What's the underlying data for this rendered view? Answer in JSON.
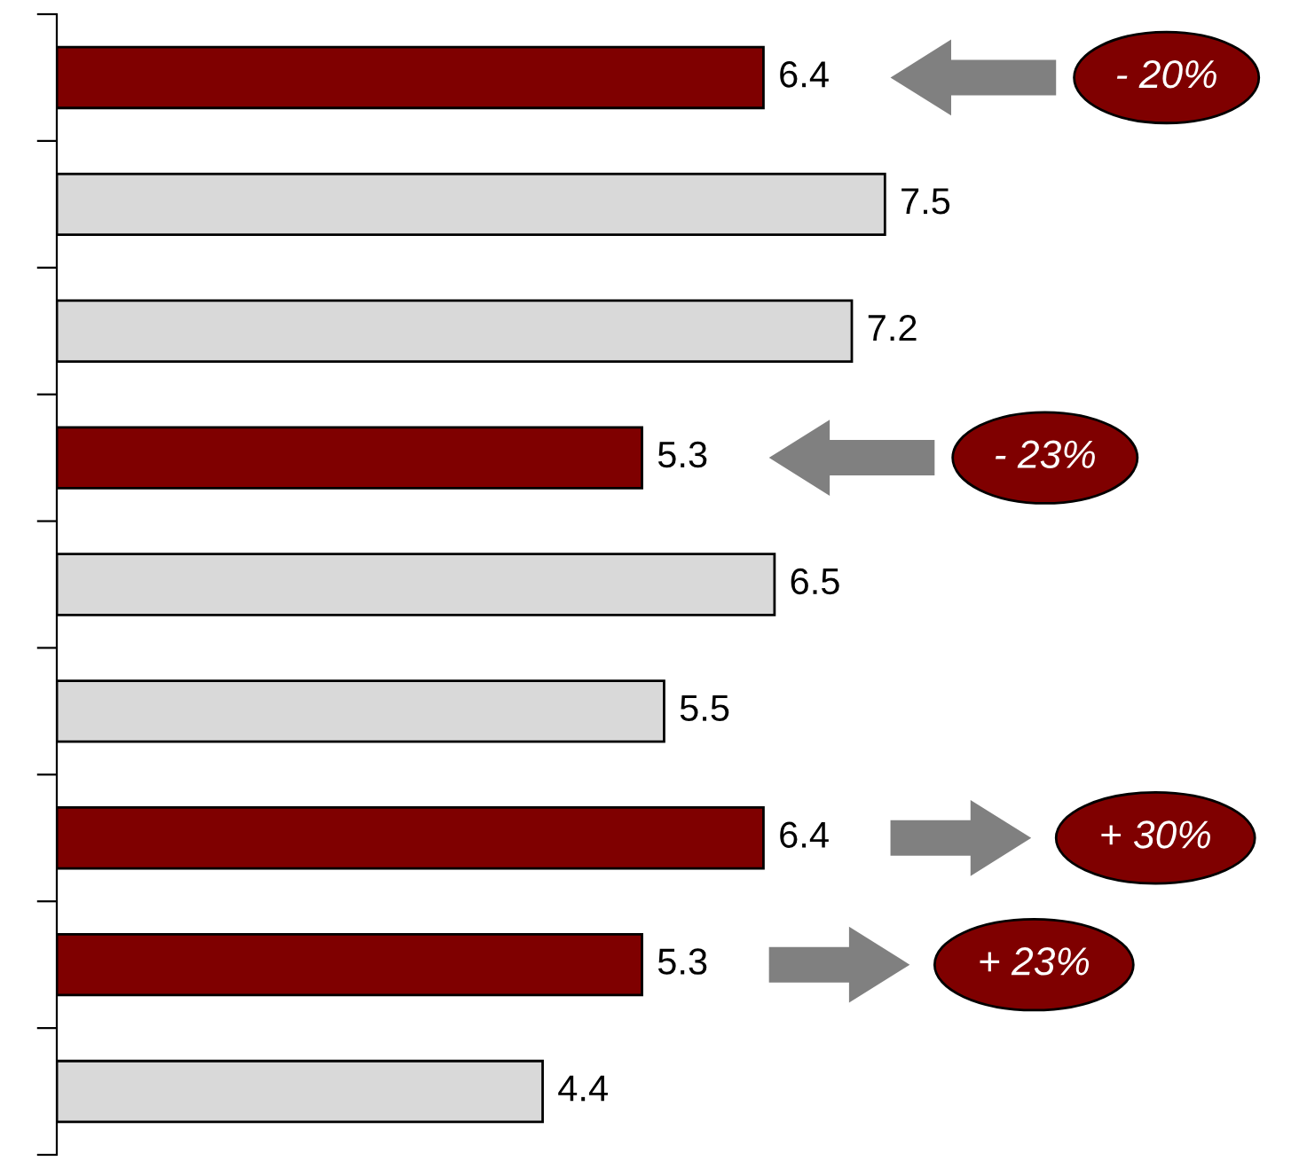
{
  "chart_data": {
    "type": "bar",
    "orientation": "horizontal",
    "categories": [
      null,
      null,
      null,
      null,
      null,
      null,
      null,
      null,
      null
    ],
    "values": [
      6.4,
      7.5,
      7.2,
      5.3,
      6.5,
      5.5,
      6.4,
      5.3,
      4.4
    ],
    "colors": [
      "#7f0000",
      "#d9d9d9",
      "#d9d9d9",
      "#7f0000",
      "#d9d9d9",
      "#d9d9d9",
      "#7f0000",
      "#7f0000",
      "#d9d9d9"
    ],
    "data_labels": true,
    "grid": false,
    "legend": false,
    "annotations": [
      "- 20%",
      "- 23%",
      "+ 30%",
      "+ 23%"
    ]
  }
}
